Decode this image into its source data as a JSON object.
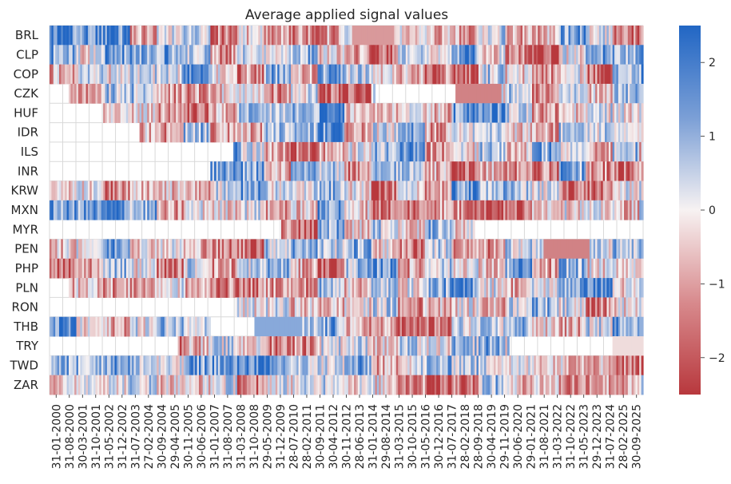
{
  "chart_data": {
    "type": "heatmap",
    "title": "Average applied signal values",
    "xlabel": "",
    "ylabel": "",
    "rows": [
      "BRL",
      "CLP",
      "COP",
      "CZK",
      "HUF",
      "IDR",
      "ILS",
      "INR",
      "KRW",
      "MXN",
      "MYR",
      "PEN",
      "PHP",
      "PLN",
      "RON",
      "THB",
      "TRY",
      "TWD",
      "ZAR"
    ],
    "x_tick_labels": [
      "31-01-2000",
      "31-08-2000",
      "30-03-2001",
      "31-10-2001",
      "31-05-2002",
      "31-12-2002",
      "31-07-2003",
      "27-02-2004",
      "30-09-2004",
      "29-04-2005",
      "30-11-2005",
      "30-06-2006",
      "31-01-2007",
      "31-08-2007",
      "31-03-2008",
      "31-10-2008",
      "29-05-2009",
      "31-12-2009",
      "28-07-2010",
      "28-02-2011",
      "30-09-2011",
      "30-04-2012",
      "30-11-2012",
      "28-06-2013",
      "31-01-2014",
      "29-08-2014",
      "31-03-2015",
      "30-10-2015",
      "31-05-2016",
      "30-12-2016",
      "31-07-2017",
      "28-02-2018",
      "28-09-2018",
      "30-04-2019",
      "29-11-2019",
      "30-06-2020",
      "29-01-2021",
      "31-08-2021",
      "31-03-2022",
      "31-10-2022",
      "31-05-2023",
      "29-12-2023",
      "31-07-2024",
      "28-02-2025",
      "30-09-2025"
    ],
    "n_columns": 310,
    "row_start_column": [
      0,
      0,
      0,
      10,
      28,
      47,
      96,
      84,
      0,
      0,
      120,
      0,
      0,
      10,
      97,
      0,
      67,
      0,
      0
    ],
    "constant_segments": [
      {
        "row": "BRL",
        "from_column": 158,
        "to_column": 180,
        "value": -1.2
      },
      {
        "row": "CZK",
        "from_column": 170,
        "to_column": 212,
        "value": null
      },
      {
        "row": "CZK",
        "from_column": 212,
        "to_column": 236,
        "value": -1.5
      },
      {
        "row": "PEN",
        "from_column": 258,
        "to_column": 282,
        "value": -1.5
      },
      {
        "row": "THB",
        "from_column": 84,
        "to_column": 107,
        "value": null
      },
      {
        "row": "THB",
        "from_column": 107,
        "to_column": 132,
        "value": 1.3
      },
      {
        "row": "MYR",
        "from_column": 222,
        "to_column": 310,
        "value": null
      },
      {
        "row": "TRY",
        "from_column": 240,
        "to_column": 294,
        "value": null
      },
      {
        "row": "TRY",
        "from_column": 294,
        "to_column": 310,
        "value": -0.3
      }
    ],
    "value_range": [
      -2.5,
      2.5
    ],
    "colorbar_ticks": [
      2,
      1,
      0,
      -1,
      -2
    ],
    "colorbar_tick_labels": [
      "2",
      "1",
      "0",
      "−1",
      "−2"
    ],
    "colormap": "vlag_r",
    "colors": {
      "high": "#2166c4",
      "mid": "#f7f2f2",
      "low": "#b8383d",
      "grid": "#d9d9d9"
    },
    "grid": true
  }
}
